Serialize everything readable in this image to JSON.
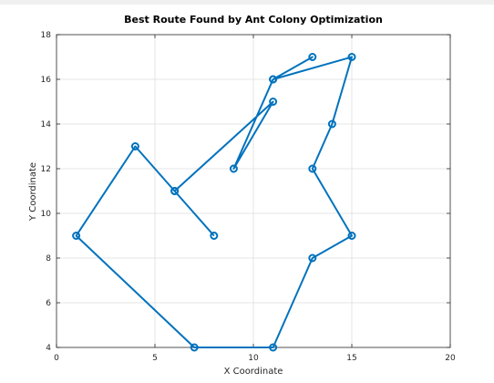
{
  "chart_data": {
    "type": "line",
    "title": "Best Route Found by Ant Colony Optimization",
    "xlabel": "X Coordinate",
    "ylabel": "Y Coordinate",
    "xlim": [
      0,
      20
    ],
    "ylim": [
      4,
      18
    ],
    "xticks": [
      0,
      5,
      10,
      15,
      20
    ],
    "yticks": [
      4,
      6,
      8,
      10,
      12,
      14,
      16,
      18
    ],
    "grid": true,
    "marker": "circle",
    "line_color": "#0072bd",
    "series": [
      {
        "x": [
          8,
          6,
          4,
          1,
          7,
          11,
          13,
          15,
          13,
          14,
          15,
          11,
          13,
          11,
          9,
          11,
          6
        ],
        "y": [
          9,
          11,
          13,
          9,
          4,
          4,
          8,
          9,
          12,
          14,
          17,
          16,
          17,
          16,
          12,
          15,
          11
        ]
      }
    ]
  }
}
